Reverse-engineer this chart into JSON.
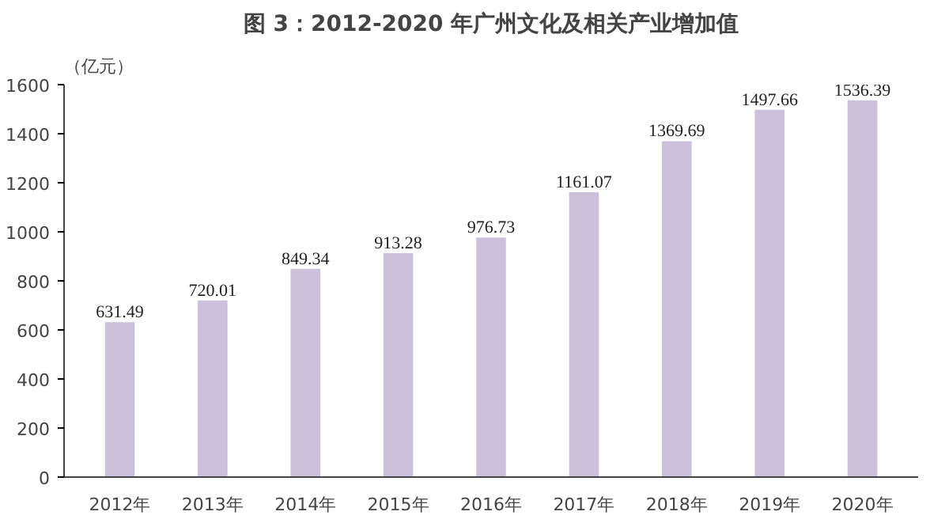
{
  "chart_data": {
    "type": "bar",
    "title": "图 3：2012-2020 年广州文化及相关产业增加值",
    "ylabel": "（亿元）",
    "categories": [
      "2012年",
      "2013年",
      "2014年",
      "2015年",
      "2016年",
      "2017年",
      "2018年",
      "2019年",
      "2020年"
    ],
    "values": [
      631.49,
      720.01,
      849.34,
      913.28,
      976.73,
      1161.07,
      1369.69,
      1497.66,
      1536.39
    ],
    "color": "#ccc1da",
    "ylim": [
      0,
      1600
    ],
    "yticks": [
      0,
      200,
      400,
      600,
      800,
      1000,
      1200,
      1400,
      1600
    ],
    "data_labels": true,
    "grid": false
  }
}
